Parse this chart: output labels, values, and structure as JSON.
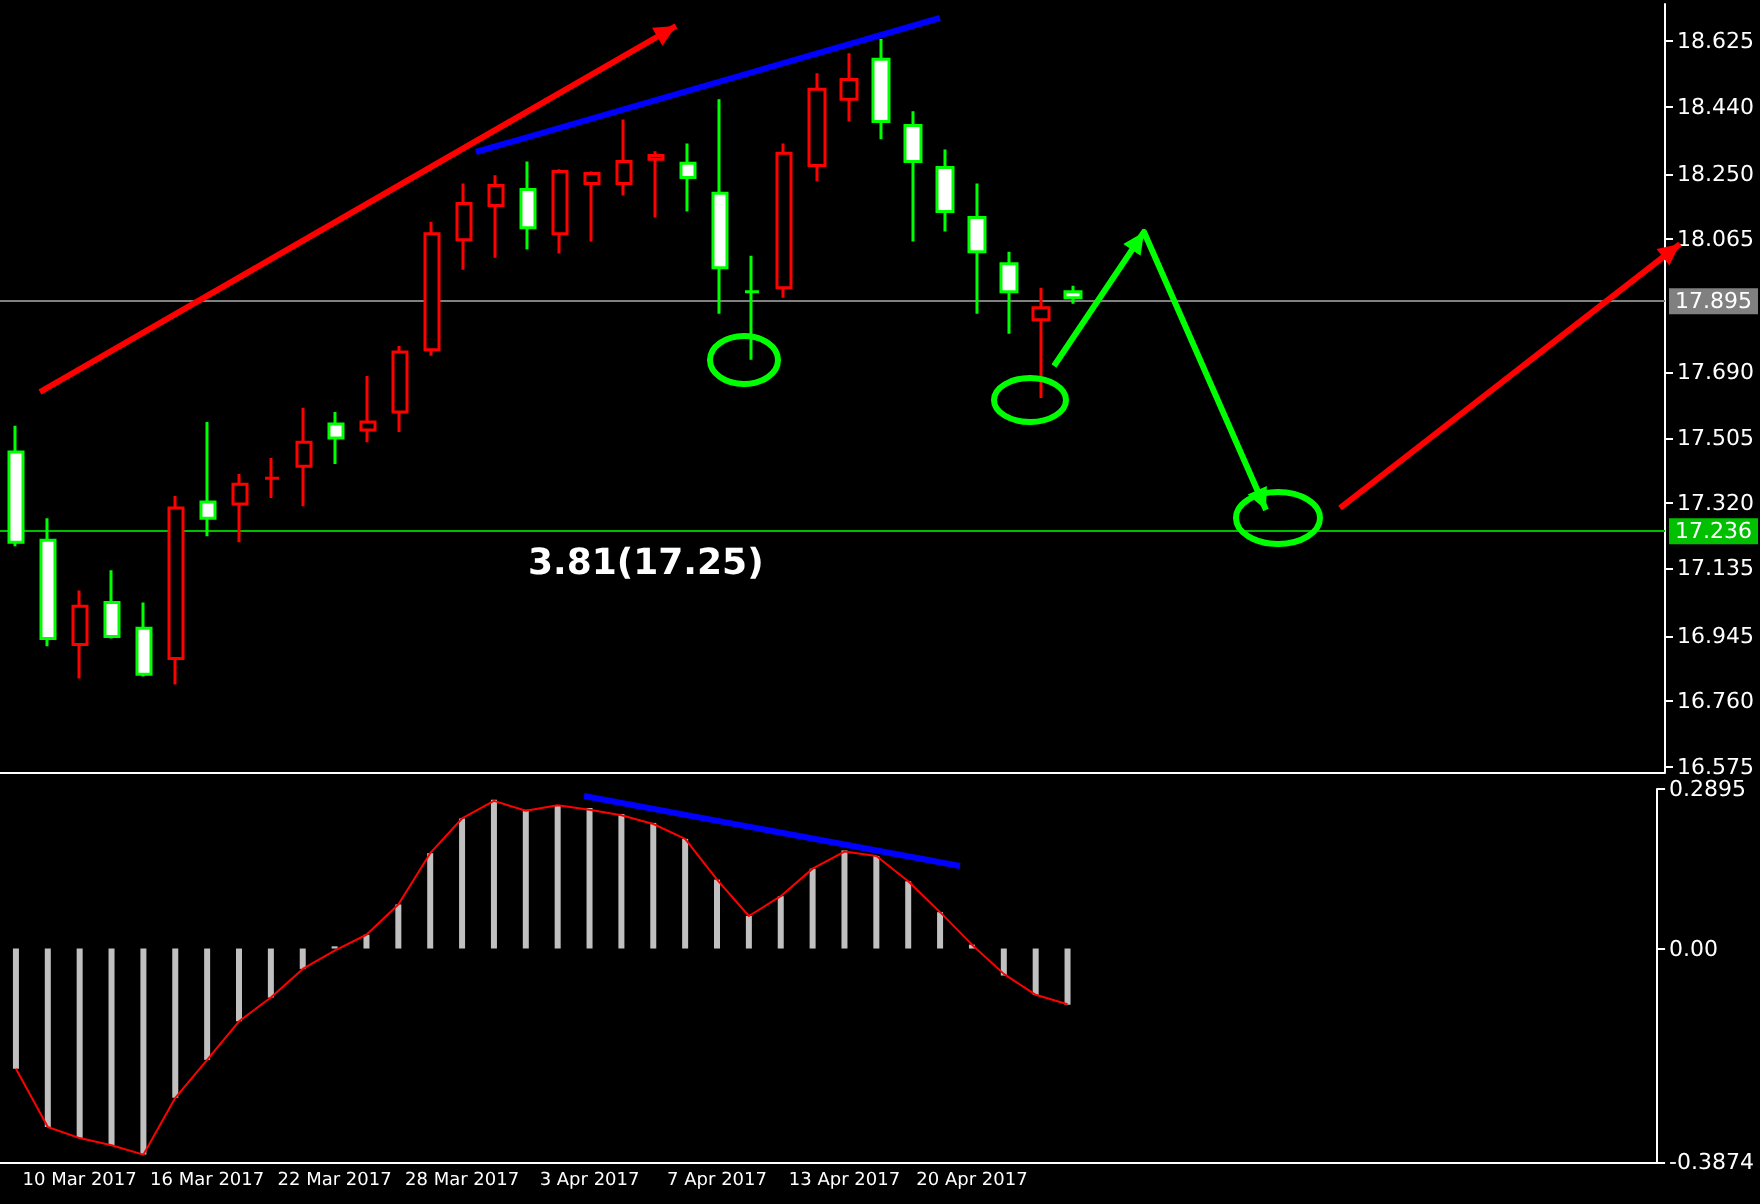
{
  "chart_data": [
    {
      "type": "candlestick",
      "categories": [
        null,
        null,
        null,
        null,
        null,
        null,
        null,
        null,
        null,
        null,
        null,
        null,
        null,
        null,
        null,
        null,
        null,
        null,
        null,
        null,
        null,
        null,
        null,
        null,
        null,
        null,
        null,
        null,
        null,
        null,
        null,
        null,
        null,
        null,
        null,
        null,
        null,
        null,
        null,
        null,
        null,
        null,
        null,
        null,
        null,
        null,
        null,
        null,
        null,
        null,
        null,
        null
      ],
      "ohlc": [
        [
          17.464,
          17.538,
          17.198,
          17.209
        ],
        [
          17.215,
          17.277,
          16.915,
          16.937
        ],
        [
          16.92,
          17.073,
          16.824,
          17.028
        ],
        [
          17.039,
          17.13,
          16.937,
          16.943
        ],
        [
          16.966,
          17.039,
          16.83,
          16.836
        ],
        [
          16.881,
          17.34,
          16.807,
          17.306
        ],
        [
          17.323,
          17.549,
          17.226,
          17.277
        ],
        [
          17.317,
          17.402,
          17.209,
          17.373
        ],
        [
          17.39,
          17.447,
          17.334,
          17.39
        ],
        [
          17.424,
          17.589,
          17.311,
          17.492
        ],
        [
          17.543,
          17.577,
          17.43,
          17.504
        ],
        [
          17.526,
          17.679,
          17.492,
          17.549
        ],
        [
          17.577,
          17.764,
          17.521,
          17.747
        ],
        [
          17.753,
          18.115,
          17.736,
          18.081
        ],
        [
          18.064,
          18.223,
          17.979,
          18.166
        ],
        [
          18.161,
          18.246,
          18.013,
          18.217
        ],
        [
          18.206,
          18.285,
          18.036,
          18.098
        ],
        [
          18.081,
          18.263,
          18.025,
          18.257
        ],
        [
          18.223,
          18.257,
          18.059,
          18.251
        ],
        [
          18.223,
          18.404,
          18.189,
          18.285
        ],
        [
          18.291,
          18.314,
          18.127,
          18.302
        ],
        [
          18.28,
          18.336,
          18.144,
          18.24
        ],
        [
          18.195,
          18.461,
          17.855,
          17.985
        ],
        [
          17.917,
          18.019,
          17.725,
          17.917
        ],
        [
          17.928,
          18.336,
          17.9,
          18.308
        ],
        [
          18.274,
          18.534,
          18.229,
          18.489
        ],
        [
          18.461,
          18.591,
          18.398,
          18.517
        ],
        [
          18.574,
          18.631,
          18.348,
          18.398
        ],
        [
          18.387,
          18.427,
          18.059,
          18.285
        ],
        [
          18.268,
          18.319,
          18.087,
          18.144
        ],
        [
          18.127,
          18.223,
          17.855,
          18.03
        ],
        [
          17.996,
          18.03,
          17.798,
          17.917
        ],
        [
          17.838,
          17.928,
          17.617,
          17.872
        ],
        [
          17.917,
          17.934,
          17.883,
          17.9
        ],
        null,
        null,
        null,
        null,
        null,
        null,
        null,
        null,
        null,
        null,
        null,
        null,
        null,
        null,
        null,
        null,
        null,
        null
      ],
      "ylim": [
        16.56,
        18.73
      ],
      "yticks": [
        16.575,
        {
          "value": 16.76,
          "label": "16.760"
        },
        16.945,
        17.135,
        {
          "value": 17.32,
          "label": "17.320"
        },
        17.505,
        {
          "value": 17.69,
          "label": "17.690"
        },
        18.065,
        {
          "value": 18.25,
          "label": "18.250"
        },
        {
          "value": 18.44,
          "label": "18.440"
        },
        18.625
      ],
      "ref_lines": [
        {
          "axis": "y",
          "value": 17.895,
          "label": "17.895",
          "color": "#808080"
        },
        {
          "axis": "y",
          "value": 17.236,
          "label": "17.236",
          "color": "#00c000"
        }
      ],
      "annotations": [
        "3.81(17.25)"
      ],
      "tick_labels": "y",
      "grid": false
    },
    {
      "type": "bar",
      "categories": [
        null,
        null,
        "10 Mar 2017",
        null,
        null,
        null,
        "16 Mar 2017",
        null,
        null,
        null,
        "22 Mar 2017",
        null,
        null,
        null,
        "28 Mar 2017",
        null,
        null,
        null,
        "3 Apr 2017",
        null,
        null,
        null,
        "7 Apr 2017",
        null,
        null,
        null,
        "13 Apr 2017",
        null,
        null,
        null,
        "20 Apr 2017",
        null,
        null,
        null,
        null,
        null,
        null,
        null,
        null,
        null,
        null,
        null,
        null,
        null,
        null,
        null,
        null,
        null,
        null,
        null,
        null,
        null
      ],
      "series": [
        {
          "color": "#c0c0c0",
          "values": [
            -0.218,
            -0.324,
            -0.344,
            -0.357,
            -0.374,
            -0.271,
            -0.202,
            -0.132,
            -0.089,
            -0.037,
            0.004,
            0.025,
            0.08,
            0.173,
            0.236,
            0.27,
            0.252,
            0.26,
            0.255,
            0.244,
            0.228,
            0.199,
            0.125,
            0.059,
            0.095,
            0.145,
            0.178,
            0.168,
            0.122,
            0.066,
            0.007,
            -0.049,
            -0.084,
            -0.102,
            null,
            null,
            null,
            null,
            null,
            null,
            null,
            null,
            null,
            null,
            null,
            null,
            null,
            null,
            null,
            null,
            null,
            null
          ]
        },
        {
          "type": "line",
          "color": "#ff0000",
          "values": [
            -0.218,
            -0.324,
            -0.344,
            -0.357,
            -0.374,
            -0.271,
            -0.202,
            -0.132,
            -0.089,
            -0.037,
            -0.004,
            0.025,
            0.08,
            0.173,
            0.236,
            0.268,
            0.25,
            0.26,
            0.252,
            0.242,
            0.226,
            0.199,
            0.125,
            0.059,
            0.095,
            0.145,
            0.176,
            0.168,
            0.122,
            0.066,
            0.007,
            -0.046,
            -0.084,
            -0.101,
            null,
            null,
            null,
            null,
            null,
            null,
            null,
            null,
            null,
            null,
            null,
            null,
            null,
            null,
            null,
            null,
            null,
            null
          ]
        }
      ],
      "ylim": [
        -0.3874,
        0.2895
      ],
      "yticks": [
        -0.3874,
        {
          "value": 0,
          "label": "0.00"
        },
        0.2895
      ],
      "marker": "none",
      "line_style": "solid",
      "grid": false
    }
  ]
}
